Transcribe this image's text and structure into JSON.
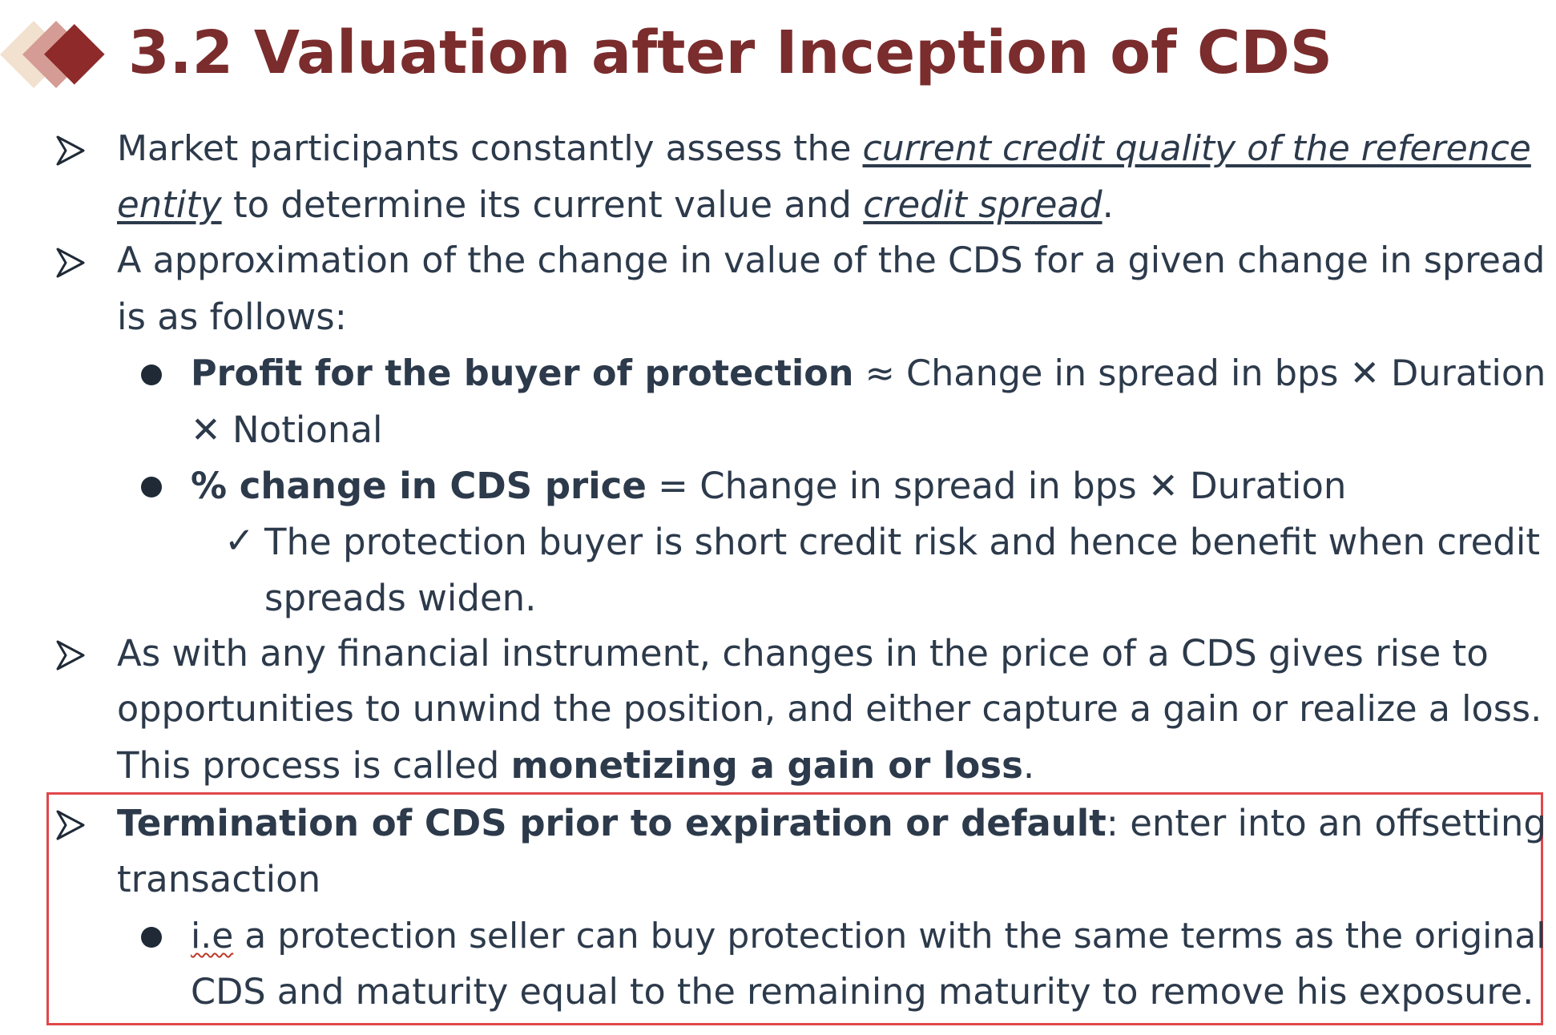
{
  "title": "3.2 Valuation after Inception of CDS",
  "bullets": {
    "b1": {
      "l1_pre": "Market participants constantly assess the ",
      "l1_em": "current credit quality of the reference",
      "l2_em": "entity",
      "l2_mid": " to determine its current value and ",
      "l2_em2": "credit spread",
      "l2_post": "."
    },
    "b2": {
      "l1": "A approximation of the change in value of the CDS for a given change in spread",
      "l2": "is as follows:"
    },
    "b2a": {
      "bold": "Profit for the buyer of protection",
      "l1_rest": " ≈ Change in spread in bps ✕ Duration",
      "l2": "✕ Notional"
    },
    "b2b": {
      "bold": "% change in CDS price",
      "rest": " = Change in spread in bps ✕ Duration"
    },
    "b2b_check": {
      "mark": "✓",
      "l1": "The protection buyer is short credit risk and hence benefit when credit",
      "l2": "spreads widen."
    },
    "b3": {
      "l1": "As with any financial instrument, changes in the price of a CDS gives rise to",
      "l2": "opportunities to unwind the position, and either capture a gain or realize a loss.",
      "l3_pre": "This process is called ",
      "l3_bold": "monetizing a gain or loss",
      "l3_post": "."
    },
    "b4": {
      "bold": "Termination of CDS prior to expiration or default",
      "l1_rest": ": enter into an offsetting",
      "l2": "transaction"
    },
    "b4a": {
      "ie": "i.e",
      "l1_rest": "  a protection seller can buy protection with the same terms as the original",
      "l2": "CDS and maturity equal to the remaining maturity to remove his exposure."
    }
  },
  "colors": {
    "title": "#7b2c2c",
    "text": "#2c3a4b",
    "box_border": "#e0474a",
    "diamond_dark": "#8b2a2a",
    "diamond_mid": "#c98b86",
    "diamond_light": "#f0dccb"
  },
  "icons": [
    "diamond-logo-icon",
    "arrow-bullet-icon",
    "round-bullet-icon",
    "checkmark-icon"
  ]
}
